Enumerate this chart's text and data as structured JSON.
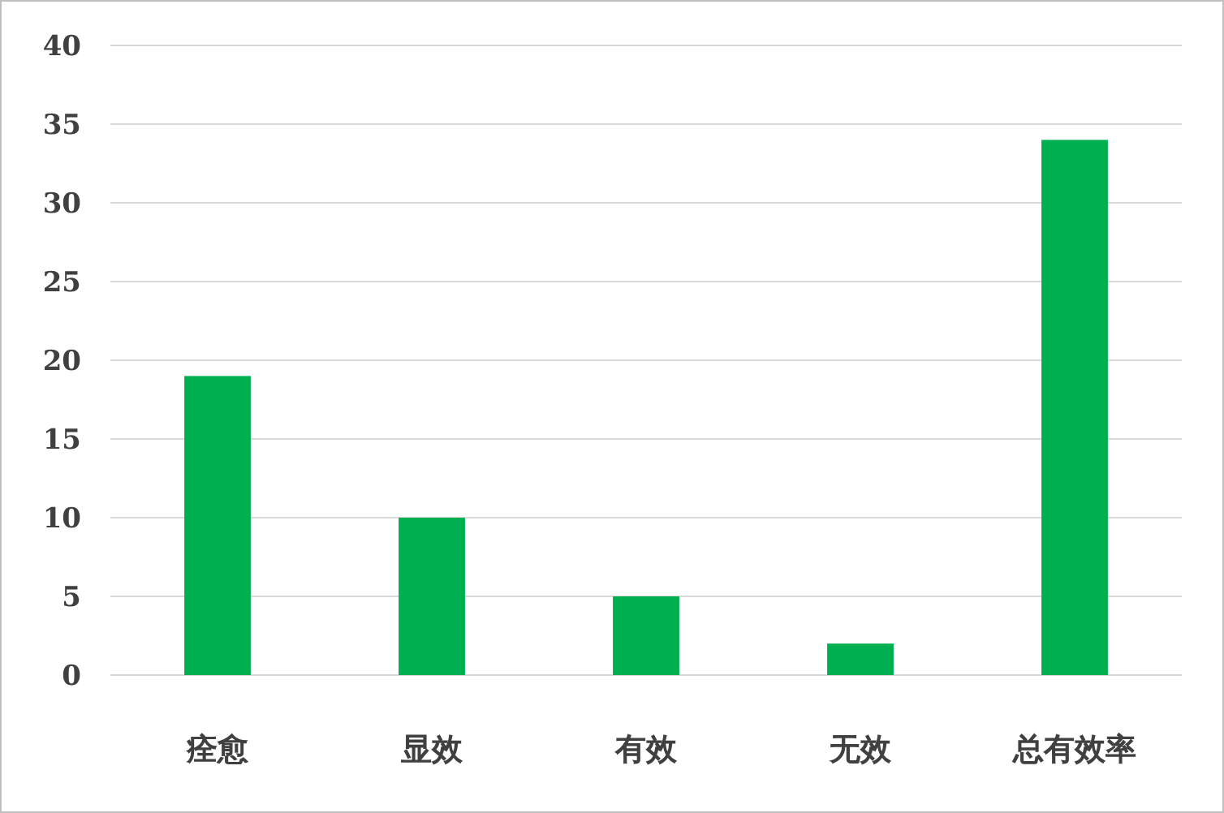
{
  "chart_data": {
    "type": "bar",
    "categories": [
      "痊愈",
      "显效",
      "有效",
      "无效",
      "总有效率"
    ],
    "values": [
      19,
      10,
      5,
      2,
      34
    ],
    "color": "#00b050",
    "ylim": [
      0,
      40
    ],
    "yticks": [
      0,
      5,
      10,
      15,
      20,
      25,
      30,
      35,
      40
    ],
    "grid": "y"
  }
}
